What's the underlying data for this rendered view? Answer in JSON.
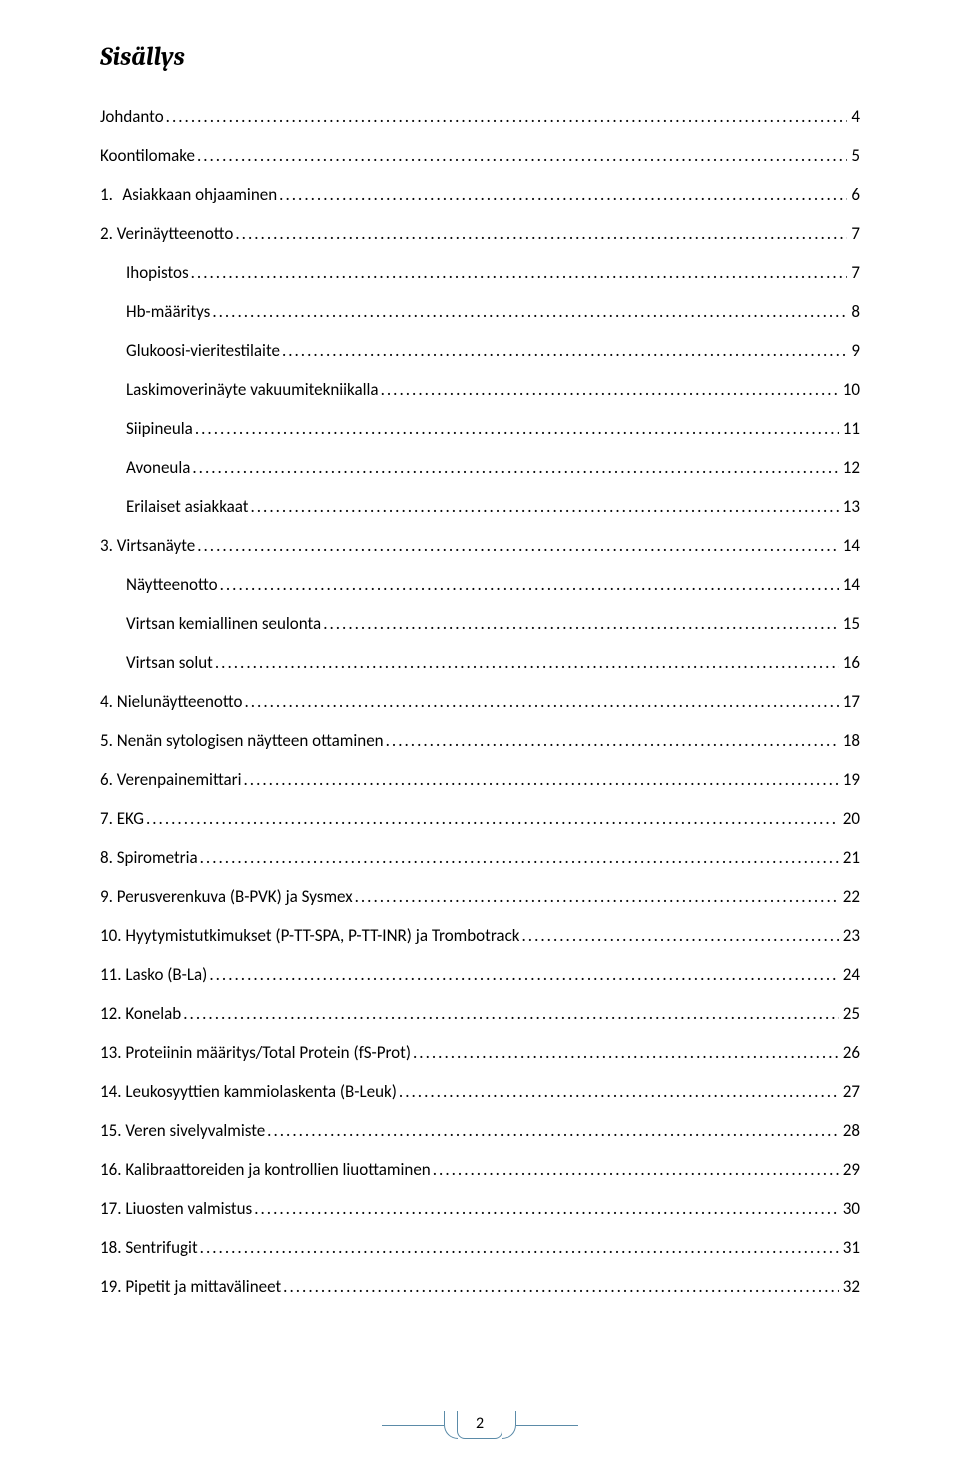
{
  "heading": "Sisällys",
  "toc": [
    {
      "label": "Johdanto",
      "page": "4",
      "indent": false
    },
    {
      "label": "Koontilomake",
      "page": "5",
      "indent": false
    },
    {
      "label": "1.",
      "gap": 22,
      "title": "Asiakkaan ohjaaminen",
      "page": "6",
      "indent": false
    },
    {
      "label": "2. Verinäytteenotto",
      "page": "7",
      "indent": false
    },
    {
      "label": "Ihopistos",
      "page": "7",
      "indent": true
    },
    {
      "label": "Hb-määritys",
      "page": "8",
      "indent": true
    },
    {
      "label": "Glukoosi-vieritestilaite",
      "page": "9",
      "indent": true
    },
    {
      "label": "Laskimoverinäyte vakuumitekniikalla",
      "page": "10",
      "indent": true
    },
    {
      "label": "Siipineula",
      "page": "11",
      "indent": true
    },
    {
      "label": "Avoneula",
      "page": "12",
      "indent": true
    },
    {
      "label": "Erilaiset asiakkaat",
      "page": "13",
      "indent": true
    },
    {
      "label": "3. Virtsanäyte",
      "page": "14",
      "indent": false
    },
    {
      "label": "Näytteenotto",
      "page": "14",
      "indent": true
    },
    {
      "label": "Virtsan kemiallinen seulonta",
      "page": "15",
      "indent": true
    },
    {
      "label": "Virtsan solut",
      "page": "16",
      "indent": true
    },
    {
      "label": "4. Nielunäytteenotto",
      "page": "17",
      "indent": false
    },
    {
      "label": "5. Nenän sytologisen näytteen ottaminen",
      "page": "18",
      "indent": false
    },
    {
      "label": "6. Verenpainemittari",
      "page": "19",
      "indent": false
    },
    {
      "label": "7. EKG",
      "page": "20",
      "indent": false
    },
    {
      "label": "8. Spirometria",
      "page": "21",
      "indent": false
    },
    {
      "label": "9. Perusverenkuva (B-PVK) ja Sysmex",
      "page": "22",
      "indent": false
    },
    {
      "label": "10. Hyytymistutkimukset (P-TT-SPA, P-TT-INR) ja Trombotrack",
      "page": "23",
      "indent": false
    },
    {
      "label": "11. Lasko (B-La)",
      "page": "24",
      "indent": false
    },
    {
      "label": "12. Konelab",
      "page": "25",
      "indent": false
    },
    {
      "label": "13. Proteiinin määritys/Total Protein (fS-Prot)",
      "page": "26",
      "indent": false
    },
    {
      "label": "14. Leukosyyttien kammiolaskenta (B-Leuk)",
      "page": "27",
      "indent": false
    },
    {
      "label": "15. Veren sivelyvalmiste",
      "page": "28",
      "indent": false
    },
    {
      "label": "16. Kalibraattoreiden ja kontrollien liuottaminen",
      "page": "29",
      "indent": false
    },
    {
      "label": "17. Liuosten valmistus",
      "page": "30",
      "indent": false
    },
    {
      "label": "18. Sentrifugit",
      "page": "31",
      "indent": false
    },
    {
      "label": "19. Pipetit ja mittavälineet",
      "page": "32",
      "indent": false
    }
  ],
  "footer": {
    "page_number": "2"
  },
  "colors": {
    "accent": "#5b8ba8",
    "text": "#000000",
    "background": "#ffffff"
  }
}
